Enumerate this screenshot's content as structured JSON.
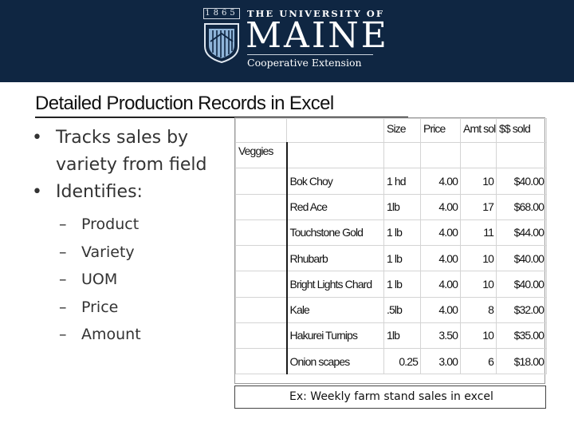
{
  "header": {
    "year": "1865",
    "university_line": "THE UNIVERSITY OF",
    "state_name": "MAINE",
    "unit_name": "Cooperative Extension"
  },
  "slide": {
    "title": "Detailed Production Records in Excel",
    "bullets": [
      {
        "text": "Tracks sales by variety from field"
      },
      {
        "text": "Identifies:"
      }
    ],
    "sub_bullets": [
      "Product",
      "Variety",
      "UOM",
      "Price",
      "Amount"
    ],
    "bullet_symbol": "•",
    "dash_symbol": "–"
  },
  "spreadsheet": {
    "columns": [
      "",
      "",
      "Size",
      "Price",
      "Amt sold",
      "$$ sold"
    ],
    "category": "Veggies",
    "rows": [
      {
        "variety": "Bok Choy",
        "size": "1 hd",
        "extra": "",
        "price": "4.00",
        "amt": "10",
        "sold": "$40.00"
      },
      {
        "variety": "Red Ace",
        "size": "1lb",
        "extra": "",
        "price": "4.00",
        "amt": "17",
        "sold": "$68.00"
      },
      {
        "variety": "Touchstone Gold",
        "size": "1 lb",
        "extra": "",
        "price": "4.00",
        "amt": "11",
        "sold": "$44.00"
      },
      {
        "variety": "Rhubarb",
        "size": "1 lb",
        "extra": "",
        "price": "4.00",
        "amt": "10",
        "sold": "$40.00"
      },
      {
        "variety": "Bright Lights Chard",
        "size": "1 lb",
        "extra": "",
        "price": "4.00",
        "amt": "10",
        "sold": "$40.00"
      },
      {
        "variety": "Kale",
        "size": ".5lb",
        "extra": "",
        "price": "4.00",
        "amt": "8",
        "sold": "$32.00"
      },
      {
        "variety": "Hakurei Turnips",
        "size": "1lb",
        "extra": "",
        "price": "3.50",
        "amt": "10",
        "sold": "$35.00"
      },
      {
        "variety": "Onion scapes",
        "size": "",
        "extra": "0.25",
        "price": "3.00",
        "amt": "6",
        "sold": "$18.00"
      }
    ]
  },
  "caption": "Ex: Weekly farm stand sales in excel",
  "colors": {
    "header_navy": "#0f2642",
    "shield_blue": "#8fb4d8",
    "text": "#333333"
  }
}
